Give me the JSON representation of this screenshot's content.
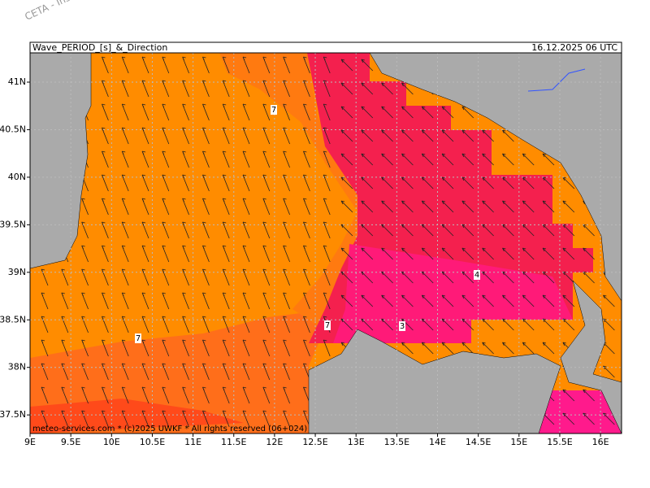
{
  "header": {
    "title": "Wave_PERIOD_[s]_&_Direction",
    "datetime": "16.12.2025 06 UTC"
  },
  "watermark": "CETA - Inst.",
  "map": {
    "lat_ticks": [
      {
        "value": 41,
        "label": "41N"
      },
      {
        "value": 40.5,
        "label": "40.5N"
      },
      {
        "value": 40,
        "label": "40N"
      },
      {
        "value": 39.5,
        "label": "39.5N"
      },
      {
        "value": 39,
        "label": "39N"
      },
      {
        "value": 38.5,
        "label": "38.5N"
      },
      {
        "value": 38,
        "label": "38N"
      },
      {
        "value": 37.5,
        "label": "37.5N"
      }
    ],
    "lon_ticks": [
      {
        "value": 9,
        "label": "9E"
      },
      {
        "value": 9.5,
        "label": "9.5E"
      },
      {
        "value": 10,
        "label": "10E"
      },
      {
        "value": 10.5,
        "label": "10.5E"
      },
      {
        "value": 11,
        "label": "11E"
      },
      {
        "value": 11.5,
        "label": "11.5E"
      },
      {
        "value": 12,
        "label": "12E"
      },
      {
        "value": 12.5,
        "label": "12.5E"
      },
      {
        "value": 13,
        "label": "13E"
      },
      {
        "value": 13.5,
        "label": "13.5E"
      },
      {
        "value": 14,
        "label": "14E"
      },
      {
        "value": 14.5,
        "label": "14.5E"
      },
      {
        "value": 15,
        "label": "15E"
      },
      {
        "value": 15.5,
        "label": "15.5E"
      },
      {
        "value": 16,
        "label": "16E"
      }
    ],
    "contour_labels": [
      "7",
      "7",
      "7",
      "4",
      "3"
    ]
  },
  "footer": "meteo-services.com * (c)2025 UWKF * All rights reserved (06+024)"
}
